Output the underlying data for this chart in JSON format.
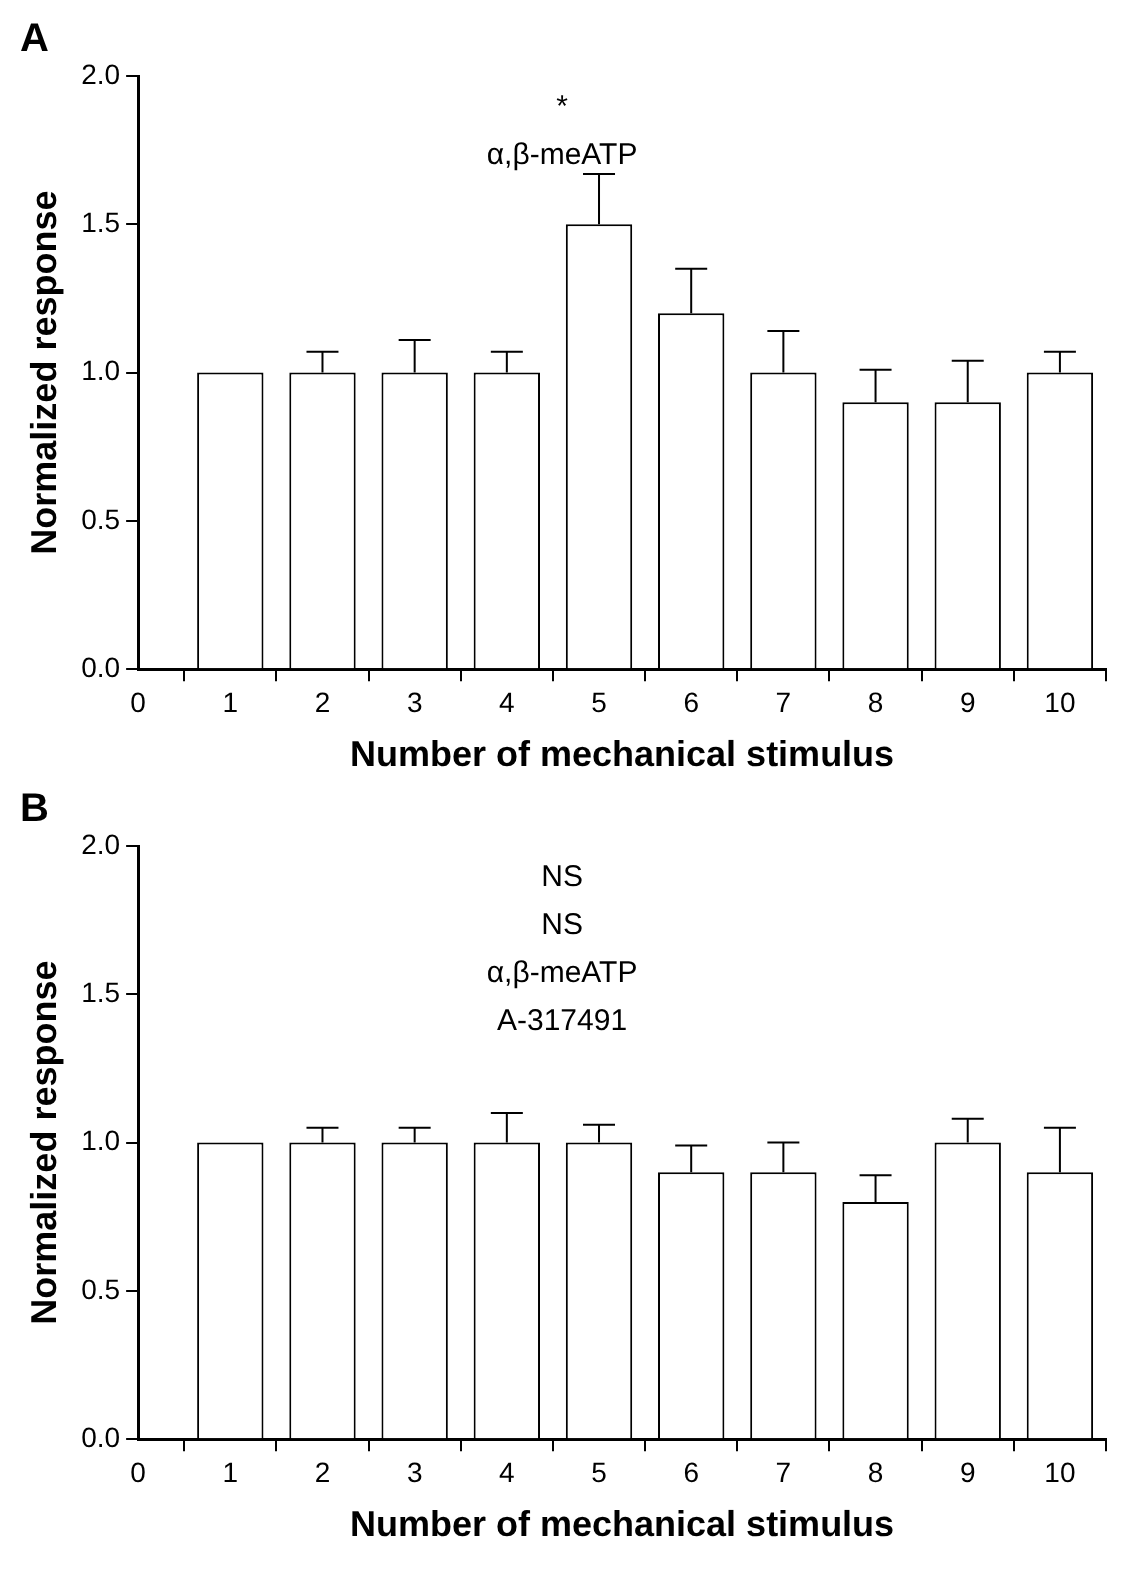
{
  "chart_data": [
    {
      "type": "bar",
      "title": "A",
      "xlabel": "Number of mechanical stimulus",
      "ylabel": "Normalized response",
      "x": [
        1,
        2,
        3,
        4,
        5,
        6,
        7,
        8,
        9,
        10
      ],
      "values": [
        1.0,
        1.0,
        1.0,
        1.0,
        1.5,
        1.2,
        1.0,
        0.9,
        0.9,
        1.0
      ],
      "color": "#ffffff",
      "errors": [
        null,
        [
          1.0,
          1.07
        ],
        [
          1.0,
          1.11
        ],
        [
          1.0,
          1.07
        ],
        [
          1.5,
          1.67
        ],
        [
          1.2,
          1.35
        ],
        [
          1.0,
          1.14
        ],
        [
          0.9,
          1.01
        ],
        [
          0.9,
          1.04
        ],
        [
          1.0,
          1.07
        ]
      ],
      "xlim": [
        0,
        10.5
      ],
      "xticks": [
        0,
        1,
        2,
        3,
        4,
        5,
        6,
        7,
        8,
        9,
        10
      ],
      "ylim": [
        0,
        2
      ],
      "yticks": [
        {
          "value": 0,
          "label": "0.0"
        },
        {
          "value": 0.5,
          "label": "0.5"
        },
        {
          "value": 1,
          "label": "1.0"
        },
        {
          "value": 1.5,
          "label": "1.5"
        },
        {
          "value": 2,
          "label": "2.0"
        }
      ],
      "grid": false,
      "legend": false,
      "annotations": [
        "*",
        "α,β-meATP"
      ]
    },
    {
      "type": "bar",
      "title": "B",
      "xlabel": "Number of mechanical stimulus",
      "ylabel": "Normalized response",
      "x": [
        1,
        2,
        3,
        4,
        5,
        6,
        7,
        8,
        9,
        10
      ],
      "values": [
        1.0,
        1.0,
        1.0,
        1.0,
        1.0,
        0.9,
        0.9,
        0.8,
        1.0,
        0.9
      ],
      "color": "#ffffff",
      "errors": [
        null,
        [
          1.0,
          1.05
        ],
        [
          1.0,
          1.05
        ],
        [
          1.0,
          1.1
        ],
        [
          1.0,
          1.06
        ],
        [
          0.9,
          0.99
        ],
        [
          0.9,
          1.0
        ],
        [
          0.8,
          0.89
        ],
        [
          1.0,
          1.08
        ],
        [
          0.9,
          1.05
        ]
      ],
      "xlim": [
        0,
        10.5
      ],
      "xticks": [
        0,
        1,
        2,
        3,
        4,
        5,
        6,
        7,
        8,
        9,
        10
      ],
      "ylim": [
        0,
        2
      ],
      "yticks": [
        {
          "value": 0,
          "label": "0.0"
        },
        {
          "value": 0.5,
          "label": "0.5"
        },
        {
          "value": 1,
          "label": "1.0"
        },
        {
          "value": 1.5,
          "label": "1.5"
        },
        {
          "value": 2,
          "label": "2.0"
        }
      ],
      "grid": false,
      "legend": false,
      "annotations": [
        "NS",
        "NS",
        "α,β-meATP",
        "A-317491"
      ]
    }
  ]
}
